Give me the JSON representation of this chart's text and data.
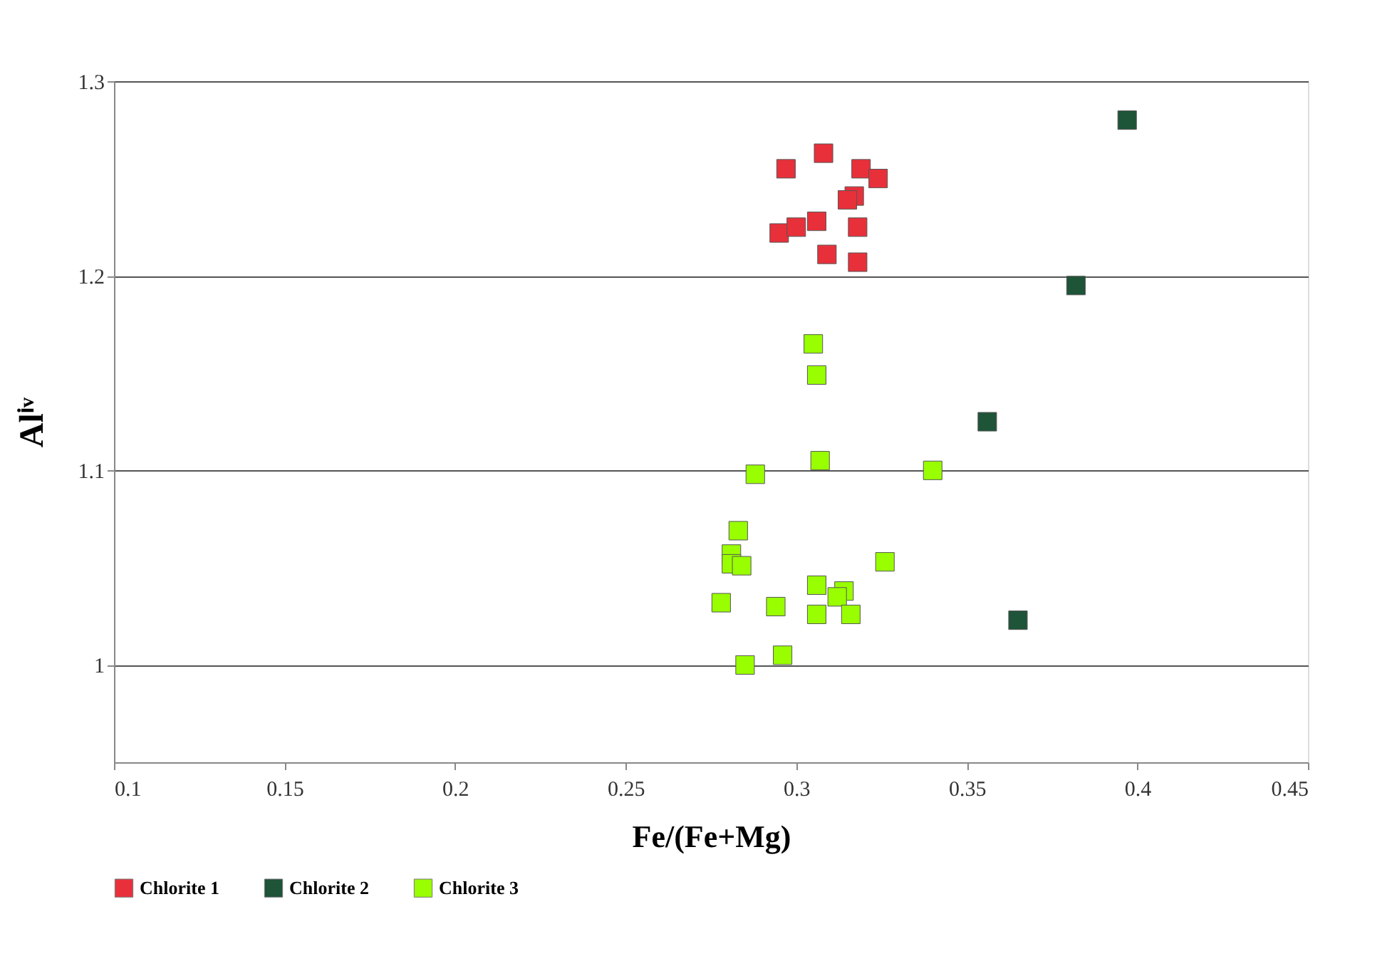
{
  "chart_data": {
    "type": "scatter",
    "xlabel": "Fe/(Fe+Mg)",
    "ylabel": "Alⁱᵛ",
    "xlim": [
      0.1,
      0.45
    ],
    "ylim": [
      0.95,
      1.3
    ],
    "xticks": [
      0.1,
      0.15,
      0.2,
      0.25,
      0.3,
      0.35,
      0.4,
      0.45
    ],
    "yticks": [
      {
        "value": 1,
        "label": "1"
      },
      1.1,
      1.2,
      1.3
    ],
    "grid": "y",
    "legend": "bottom",
    "marker": "square",
    "series": [
      {
        "name": "Chlorite 1",
        "color": "#e8303a",
        "x": [
          0.297,
          0.308,
          0.319,
          0.324,
          0.317,
          0.315,
          0.295,
          0.3,
          0.306,
          0.318,
          0.309,
          0.318
        ],
        "values": [
          1.255,
          1.263,
          1.255,
          1.25,
          1.241,
          1.239,
          1.222,
          1.225,
          1.228,
          1.225,
          1.211,
          1.207
        ]
      },
      {
        "name": "Chlorite 2",
        "color": "#1e5438",
        "x": [
          0.397,
          0.382,
          0.356,
          0.365
        ],
        "values": [
          1.28,
          1.195,
          1.125,
          1.023
        ]
      },
      {
        "name": "Chlorite 3",
        "color": "#99ff00",
        "x": [
          0.305,
          0.306,
          0.307,
          0.288,
          0.34,
          0.283,
          0.281,
          0.281,
          0.284,
          0.326,
          0.306,
          0.314,
          0.312,
          0.278,
          0.294,
          0.306,
          0.316,
          0.296,
          0.285
        ],
        "values": [
          1.165,
          1.149,
          1.105,
          1.098,
          1.1,
          1.069,
          1.057,
          1.052,
          1.051,
          1.053,
          1.041,
          1.038,
          1.035,
          1.032,
          1.03,
          1.026,
          1.026,
          1.005,
          1.0
        ]
      }
    ]
  }
}
